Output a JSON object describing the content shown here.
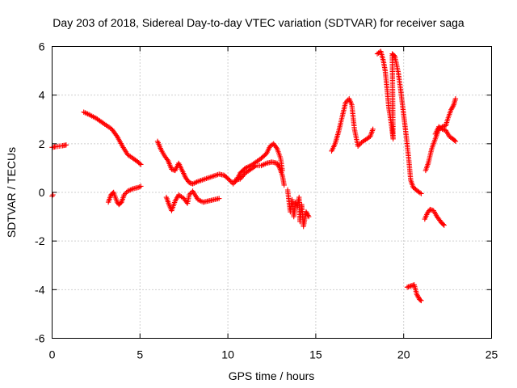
{
  "chart_data": {
    "type": "scatter",
    "title": "Day 203 of 2018, Sidereal Day-to-day VTEC variation (SDTVAR) for receiver saga",
    "xlabel": "GPS time / hours",
    "ylabel": "SDTVAR / TECUs",
    "xlim": [
      0,
      25
    ],
    "ylim": [
      -6,
      6
    ],
    "xticks": [
      "0",
      "5",
      "10",
      "15",
      "20",
      "25"
    ],
    "yticks": [
      "-6",
      "-4",
      "-2",
      "0",
      "2",
      "4",
      "6"
    ],
    "grid": true,
    "marker": "plus",
    "color": "#ff0000",
    "series": [
      {
        "segments": [
          [
            [
              0.0,
              -0.15
            ],
            [
              0.05,
              -0.1
            ]
          ],
          [
            [
              0.0,
              1.85
            ],
            [
              0.2,
              1.88
            ],
            [
              0.4,
              1.9
            ],
            [
              0.6,
              1.92
            ],
            [
              0.8,
              1.95
            ]
          ],
          [
            [
              1.8,
              3.3
            ],
            [
              2.1,
              3.2
            ],
            [
              2.5,
              3.05
            ],
            [
              3.0,
              2.8
            ],
            [
              3.4,
              2.6
            ],
            [
              3.7,
              2.3
            ],
            [
              4.0,
              1.9
            ],
            [
              4.3,
              1.55
            ],
            [
              4.6,
              1.4
            ],
            [
              4.8,
              1.3
            ],
            [
              5.05,
              1.15
            ]
          ],
          [
            [
              3.2,
              -0.4
            ],
            [
              3.35,
              -0.1
            ],
            [
              3.5,
              0.0
            ],
            [
              3.7,
              -0.4
            ],
            [
              3.8,
              -0.5
            ],
            [
              3.95,
              -0.4
            ],
            [
              4.1,
              -0.1
            ],
            [
              4.3,
              0.05
            ],
            [
              4.6,
              0.15
            ],
            [
              4.9,
              0.2
            ],
            [
              5.05,
              0.25
            ]
          ],
          [
            [
              6.0,
              2.1
            ],
            [
              6.2,
              1.75
            ],
            [
              6.4,
              1.5
            ],
            [
              6.6,
              1.3
            ],
            [
              6.8,
              0.95
            ],
            [
              7.0,
              0.9
            ],
            [
              7.2,
              1.2
            ],
            [
              7.4,
              0.9
            ],
            [
              7.6,
              0.6
            ],
            [
              7.8,
              0.4
            ],
            [
              8.0,
              0.35
            ],
            [
              8.3,
              0.45
            ],
            [
              8.7,
              0.55
            ],
            [
              9.1,
              0.65
            ],
            [
              9.5,
              0.75
            ],
            [
              9.8,
              0.7
            ],
            [
              10.1,
              0.5
            ],
            [
              10.3,
              0.35
            ],
            [
              10.5,
              0.5
            ],
            [
              10.7,
              0.8
            ],
            [
              11.0,
              1.0
            ],
            [
              11.3,
              1.1
            ],
            [
              11.6,
              1.25
            ],
            [
              11.9,
              1.4
            ],
            [
              12.2,
              1.6
            ],
            [
              12.4,
              1.9
            ],
            [
              12.6,
              2.0
            ],
            [
              12.8,
              1.8
            ],
            [
              13.0,
              1.4
            ],
            [
              13.1,
              0.9
            ]
          ],
          [
            [
              6.5,
              -0.2
            ],
            [
              6.65,
              -0.5
            ],
            [
              6.8,
              -0.75
            ],
            [
              7.0,
              -0.35
            ],
            [
              7.2,
              -0.1
            ],
            [
              7.5,
              -0.25
            ],
            [
              7.7,
              -0.45
            ],
            [
              7.8,
              -0.1
            ],
            [
              8.0,
              0.05
            ],
            [
              8.3,
              -0.3
            ],
            [
              8.6,
              -0.4
            ],
            [
              8.9,
              -0.35
            ],
            [
              9.2,
              -0.3
            ],
            [
              9.5,
              -0.25
            ]
          ],
          [
            [
              10.4,
              0.5
            ],
            [
              10.7,
              0.55
            ],
            [
              11.0,
              0.8
            ],
            [
              11.3,
              0.95
            ],
            [
              11.6,
              1.1
            ],
            [
              11.9,
              1.1
            ],
            [
              12.2,
              1.2
            ],
            [
              12.5,
              1.25
            ],
            [
              12.8,
              1.2
            ],
            [
              12.95,
              1.0
            ],
            [
              13.1,
              0.7
            ],
            [
              13.2,
              0.3
            ]
          ],
          [
            [
              13.4,
              0.1
            ],
            [
              13.55,
              -0.8
            ],
            [
              13.65,
              -0.3
            ],
            [
              13.75,
              -1.0
            ],
            [
              13.85,
              -0.4
            ],
            [
              13.95,
              -0.6
            ],
            [
              14.05,
              -0.2
            ],
            [
              14.1,
              -1.2
            ],
            [
              14.2,
              -0.5
            ],
            [
              14.3,
              -1.4
            ],
            [
              14.45,
              -0.8
            ],
            [
              14.6,
              -1.0
            ]
          ],
          [
            [
              15.9,
              1.7
            ],
            [
              16.1,
              2.0
            ],
            [
              16.3,
              2.5
            ],
            [
              16.5,
              3.1
            ],
            [
              16.7,
              3.7
            ],
            [
              16.9,
              3.85
            ],
            [
              17.05,
              3.6
            ],
            [
              17.2,
              2.6
            ],
            [
              17.4,
              1.9
            ],
            [
              17.6,
              2.05
            ],
            [
              17.9,
              2.2
            ],
            [
              18.1,
              2.3
            ],
            [
              18.25,
              2.6
            ]
          ],
          [
            [
              18.5,
              5.7
            ],
            [
              18.7,
              5.8
            ],
            [
              18.85,
              5.4
            ],
            [
              18.95,
              5.0
            ],
            [
              19.05,
              4.3
            ],
            [
              19.15,
              3.5
            ],
            [
              19.3,
              2.8
            ],
            [
              19.4,
              2.2
            ],
            [
              19.35,
              5.7
            ],
            [
              19.5,
              5.6
            ],
            [
              19.7,
              4.9
            ],
            [
              19.85,
              4.1
            ],
            [
              20.0,
              3.2
            ],
            [
              20.15,
              2.3
            ],
            [
              20.3,
              1.3
            ],
            [
              20.4,
              0.5
            ],
            [
              20.55,
              0.2
            ],
            [
              20.8,
              0.05
            ],
            [
              21.0,
              -0.05
            ]
          ],
          [
            [
              20.2,
              -3.9
            ],
            [
              20.4,
              -3.85
            ],
            [
              20.6,
              -3.8
            ],
            [
              20.75,
              -4.2
            ],
            [
              20.9,
              -4.4
            ],
            [
              21.0,
              -4.45
            ]
          ],
          [
            [
              21.2,
              -1.1
            ],
            [
              21.35,
              -0.85
            ],
            [
              21.5,
              -0.7
            ],
            [
              21.7,
              -0.75
            ],
            [
              21.9,
              -1.0
            ],
            [
              22.15,
              -1.25
            ],
            [
              22.3,
              -1.35
            ]
          ],
          [
            [
              21.25,
              0.9
            ],
            [
              21.4,
              1.2
            ],
            [
              21.6,
              1.8
            ],
            [
              21.8,
              2.2
            ],
            [
              22.0,
              2.6
            ],
            [
              22.2,
              2.7
            ],
            [
              22.4,
              2.75
            ],
            [
              22.5,
              3.0
            ],
            [
              22.7,
              3.4
            ],
            [
              22.85,
              3.6
            ],
            [
              22.95,
              3.85
            ]
          ],
          [
            [
              21.8,
              2.4
            ],
            [
              22.0,
              2.7
            ],
            [
              22.2,
              2.6
            ],
            [
              22.4,
              2.55
            ],
            [
              22.6,
              2.3
            ],
            [
              22.8,
              2.2
            ],
            [
              22.95,
              2.1
            ]
          ]
        ]
      }
    ]
  }
}
